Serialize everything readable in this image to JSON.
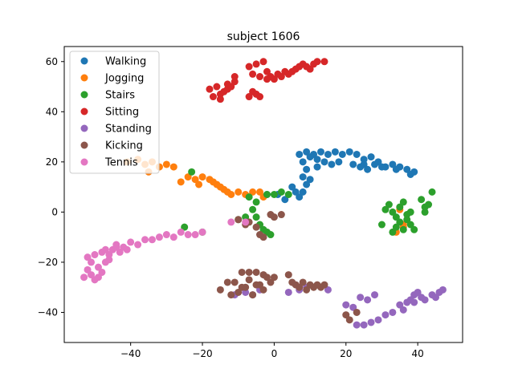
{
  "chart_data": {
    "type": "scatter",
    "title": "subject 1606",
    "xlabel": "",
    "ylabel": "",
    "xlim": [
      -58.5,
      52.5
    ],
    "ylim": [
      -52,
      66
    ],
    "xticks": [
      -40,
      -20,
      0,
      20,
      40
    ],
    "yticks": [
      -40,
      -20,
      0,
      20,
      40,
      60
    ],
    "grid": false,
    "legend_position": "top-left",
    "series": [
      {
        "name": "Walking",
        "color": "#1f77b4",
        "points": [
          [
            7,
            23
          ],
          [
            9,
            24
          ],
          [
            11,
            23
          ],
          [
            13,
            24
          ],
          [
            15,
            23
          ],
          [
            17,
            24
          ],
          [
            19,
            23
          ],
          [
            21,
            24
          ],
          [
            23,
            23
          ],
          [
            25,
            21
          ],
          [
            27,
            22
          ],
          [
            29,
            20
          ],
          [
            31,
            18
          ],
          [
            33,
            19
          ],
          [
            35,
            18
          ],
          [
            37,
            17
          ],
          [
            39,
            16
          ],
          [
            12,
            21
          ],
          [
            14,
            20
          ],
          [
            16,
            19
          ],
          [
            18,
            20
          ],
          [
            22,
            19
          ],
          [
            24,
            18
          ],
          [
            26,
            17
          ],
          [
            28,
            19
          ],
          [
            30,
            18
          ],
          [
            8,
            20
          ],
          [
            9,
            17
          ],
          [
            8,
            14
          ],
          [
            9,
            11
          ],
          [
            8,
            8
          ],
          [
            7,
            6
          ],
          [
            6,
            8
          ],
          [
            5,
            10
          ],
          [
            10,
            13
          ],
          [
            10,
            22
          ],
          [
            12,
            18
          ],
          [
            25,
            19
          ],
          [
            34,
            17
          ],
          [
            38,
            15
          ],
          [
            -2,
            7
          ],
          [
            1,
            7
          ],
          [
            3,
            5
          ]
        ]
      },
      {
        "name": "Jogging",
        "color": "#ff7f0e",
        "points": [
          [
            -41,
            20
          ],
          [
            -38,
            21
          ],
          [
            -36,
            19
          ],
          [
            -34,
            20
          ],
          [
            -32,
            18
          ],
          [
            -30,
            19
          ],
          [
            -28,
            18
          ],
          [
            -35,
            16
          ],
          [
            -26,
            12
          ],
          [
            -24,
            14
          ],
          [
            -22,
            13
          ],
          [
            -20,
            14
          ],
          [
            -18,
            13
          ],
          [
            -16,
            11
          ],
          [
            -14,
            9
          ],
          [
            -12,
            7
          ],
          [
            -10,
            8
          ],
          [
            -8,
            7
          ],
          [
            -6,
            8
          ],
          [
            -4,
            8
          ],
          [
            -3,
            6
          ],
          [
            -13,
            8
          ],
          [
            -17,
            12
          ],
          [
            -15,
            10
          ],
          [
            -21,
            11
          ],
          [
            35,
            1
          ],
          [
            36,
            -5
          ],
          [
            34,
            -8
          ],
          [
            36,
            -6
          ]
        ]
      },
      {
        "name": "Stairs",
        "color": "#2ca02c",
        "points": [
          [
            -23,
            16
          ],
          [
            -7,
            6
          ],
          [
            -5,
            4
          ],
          [
            -2,
            7
          ],
          [
            0,
            7
          ],
          [
            2,
            8
          ],
          [
            4,
            7
          ],
          [
            -6,
            1
          ],
          [
            -5,
            -2
          ],
          [
            -4,
            -5
          ],
          [
            -3,
            -7
          ],
          [
            -2,
            -8
          ],
          [
            -1,
            -9
          ],
          [
            30,
            -5
          ],
          [
            31,
            1
          ],
          [
            32,
            3
          ],
          [
            33,
            0
          ],
          [
            34,
            -2
          ],
          [
            35,
            -4
          ],
          [
            36,
            -7
          ],
          [
            37,
            -3
          ],
          [
            38,
            0
          ],
          [
            34,
            -6
          ],
          [
            35,
            2
          ],
          [
            36,
            4
          ],
          [
            37,
            -1
          ],
          [
            33,
            -8
          ],
          [
            39,
            -7
          ],
          [
            38,
            -5
          ],
          [
            41,
            5
          ],
          [
            42,
            2
          ],
          [
            43,
            3
          ],
          [
            44,
            8
          ],
          [
            42,
            0
          ],
          [
            -25,
            -6
          ],
          [
            -20,
            -8
          ],
          [
            -10,
            -3
          ],
          [
            -8,
            -2
          ]
        ]
      },
      {
        "name": "Sitting",
        "color": "#d62728",
        "points": [
          [
            -18,
            49
          ],
          [
            -16,
            50
          ],
          [
            -15,
            47
          ],
          [
            -14,
            48
          ],
          [
            -13,
            49
          ],
          [
            -12,
            50
          ],
          [
            -11,
            52
          ],
          [
            -17,
            46
          ],
          [
            -15,
            45
          ],
          [
            -13,
            51
          ],
          [
            -11,
            54
          ],
          [
            -7,
            46
          ],
          [
            -6,
            48
          ],
          [
            -5,
            47
          ],
          [
            -4,
            46
          ],
          [
            -7,
            58
          ],
          [
            -5,
            59
          ],
          [
            -3,
            60
          ],
          [
            -2,
            56
          ],
          [
            -1,
            54
          ],
          [
            0,
            53
          ],
          [
            1,
            55
          ],
          [
            2,
            54
          ],
          [
            3,
            56
          ],
          [
            4,
            55
          ],
          [
            5,
            56
          ],
          [
            7,
            58
          ],
          [
            8,
            59
          ],
          [
            9,
            58
          ],
          [
            11,
            59
          ],
          [
            12,
            60
          ],
          [
            14,
            60
          ],
          [
            -6,
            55
          ],
          [
            -4,
            54
          ],
          [
            -2,
            53
          ],
          [
            6,
            57
          ],
          [
            10,
            57
          ]
        ]
      },
      {
        "name": "Standing",
        "color": "#9467bd",
        "points": [
          [
            -11,
            -33
          ],
          [
            -8,
            -32
          ],
          [
            -6,
            -33
          ],
          [
            -4,
            -31
          ],
          [
            4,
            -32
          ],
          [
            7,
            -31
          ],
          [
            9,
            -30
          ],
          [
            15,
            -31
          ],
          [
            20,
            -37
          ],
          [
            22,
            -38
          ],
          [
            24,
            -34
          ],
          [
            26,
            -35
          ],
          [
            28,
            -33
          ],
          [
            23,
            -45
          ],
          [
            25,
            -45
          ],
          [
            27,
            -44
          ],
          [
            29,
            -43
          ],
          [
            31,
            -41
          ],
          [
            33,
            -40
          ],
          [
            35,
            -37
          ],
          [
            37,
            -36
          ],
          [
            38,
            -35
          ],
          [
            39,
            -33
          ],
          [
            41,
            -34
          ],
          [
            42,
            -35
          ],
          [
            44,
            -33
          ],
          [
            46,
            -32
          ],
          [
            47,
            -31
          ],
          [
            45,
            -34
          ],
          [
            39,
            -36
          ],
          [
            36,
            -39
          ],
          [
            40,
            -32
          ]
        ]
      },
      {
        "name": "Kicking",
        "color": "#8c564b",
        "points": [
          [
            -15,
            -31
          ],
          [
            -13,
            -28
          ],
          [
            -12,
            -33
          ],
          [
            -10,
            -32
          ],
          [
            -9,
            -24
          ],
          [
            -8,
            -30
          ],
          [
            -7,
            -27
          ],
          [
            -6,
            -33
          ],
          [
            -5,
            -24
          ],
          [
            -4,
            -29
          ],
          [
            -3,
            -31
          ],
          [
            -2,
            -26
          ],
          [
            -1,
            -28
          ],
          [
            0,
            -26
          ],
          [
            -11,
            -28
          ],
          [
            -9,
            -30
          ],
          [
            -7,
            -24
          ],
          [
            -5,
            -29
          ],
          [
            -3,
            -25
          ],
          [
            4,
            -25
          ],
          [
            5,
            -28
          ],
          [
            6,
            -29
          ],
          [
            7,
            -30
          ],
          [
            8,
            -28
          ],
          [
            9,
            -31
          ],
          [
            10,
            -29
          ],
          [
            11,
            -30
          ],
          [
            12,
            -29
          ],
          [
            13,
            -30
          ],
          [
            14,
            -29
          ],
          [
            -10,
            -3
          ],
          [
            -8,
            -5
          ],
          [
            -7,
            -4
          ],
          [
            -5,
            -6
          ],
          [
            -4,
            -9
          ],
          [
            -3,
            -10
          ],
          [
            -1,
            -1
          ],
          [
            0,
            -2
          ],
          [
            2,
            -1
          ],
          [
            20,
            -41
          ],
          [
            21,
            -43
          ],
          [
            23,
            -40
          ]
        ]
      },
      {
        "name": "Tennis",
        "color": "#e377c2",
        "points": [
          [
            -53,
            -26
          ],
          [
            -52,
            -23
          ],
          [
            -51,
            -20
          ],
          [
            -52,
            -18
          ],
          [
            -50,
            -17
          ],
          [
            -49,
            -22
          ],
          [
            -48,
            -24
          ],
          [
            -50,
            -27
          ],
          [
            -47,
            -20
          ],
          [
            -46,
            -17
          ],
          [
            -45,
            -15
          ],
          [
            -44,
            -13
          ],
          [
            -43,
            -16
          ],
          [
            -42,
            -14
          ],
          [
            -41,
            -15
          ],
          [
            -40,
            -12
          ],
          [
            -38,
            -13
          ],
          [
            -36,
            -11
          ],
          [
            -34,
            -11
          ],
          [
            -32,
            -10
          ],
          [
            -30,
            -9
          ],
          [
            -28,
            -10
          ],
          [
            -26,
            -8
          ],
          [
            -24,
            -9
          ],
          [
            -22,
            -9
          ],
          [
            -20,
            -8
          ],
          [
            -48,
            -16
          ],
          [
            -46,
            -19
          ],
          [
            -44,
            -14
          ],
          [
            -51,
            -25
          ],
          [
            -49,
            -26
          ],
          [
            -47,
            -15
          ],
          [
            -12,
            -4
          ],
          [
            -8,
            -4
          ]
        ]
      }
    ]
  }
}
